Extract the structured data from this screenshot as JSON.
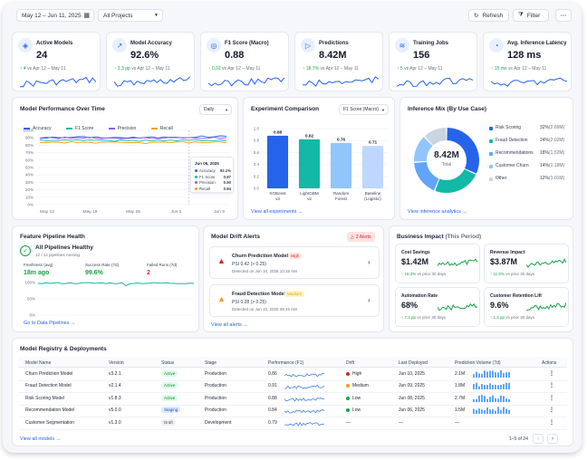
{
  "toolbar": {
    "date_range": "May 12 – Jun 11, 2025",
    "projects": "All Projects",
    "refresh": "Refresh",
    "filter": "Filter",
    "more": "···"
  },
  "kpis": [
    {
      "title": "Active Models",
      "value": "24",
      "delta": "↑ 4",
      "sub": "vs Apr 12 – May 11",
      "icon": "cube-icon"
    },
    {
      "title": "Model Accuracy",
      "value": "92.6%",
      "delta": "↑ 2.3 pp",
      "sub": "vs Apr 12 – May 11",
      "icon": "trend-icon"
    },
    {
      "title": "F1 Score (Macro)",
      "value": "0.88",
      "delta": "↑ 0.02",
      "sub": "vs Apr 12 – May 11",
      "icon": "target-icon"
    },
    {
      "title": "Predictions",
      "value": "8.42M",
      "delta": "↑ 18.7%",
      "sub": "vs Apr 12 – May 11",
      "icon": "play-icon"
    },
    {
      "title": "Training Jobs",
      "value": "156",
      "delta": "↑ 5",
      "sub": "vs Apr 12 – May 11",
      "icon": "layers-icon"
    },
    {
      "title": "Avg. Inference Latency",
      "value": "128 ms",
      "delta": "↑ 15 ms",
      "sub": "vs Apr 12 – May 11",
      "icon": "speed-icon"
    }
  ],
  "performance": {
    "title": "Model Performance Over Time",
    "period": "Daily",
    "legend": [
      "Accuracy",
      "F1 Score",
      "Precision",
      "Recall"
    ],
    "y_ticks": [
      "100%",
      "90%",
      "80%",
      "70%",
      "60%",
      "50%",
      "40%",
      "30%",
      "20%",
      "10%",
      "0%"
    ],
    "x_ticks": [
      "May 12",
      "May 19",
      "May 26",
      "Jun 2",
      "Jun 9"
    ],
    "tooltip": {
      "date": "Jun 05, 2025",
      "rows": [
        {
          "label": "Accuracy",
          "value": "92.1%"
        },
        {
          "label": "F1 Score",
          "value": "0.87"
        },
        {
          "label": "Precision",
          "value": "0.90"
        },
        {
          "label": "Recall",
          "value": "0.84"
        }
      ]
    }
  },
  "chart_data": {
    "type": "line",
    "title": "Model Performance Over Time",
    "x": [
      "May 12",
      "May 19",
      "May 26",
      "Jun 2",
      "Jun 9"
    ],
    "ylim": [
      0,
      100
    ],
    "series": [
      {
        "name": "Accuracy",
        "color": "#2563eb",
        "values": [
          90,
          91,
          90,
          91,
          92
        ]
      },
      {
        "name": "F1 Score",
        "color": "#14b8a6",
        "values": [
          87,
          87,
          86,
          87,
          87
        ]
      },
      {
        "name": "Precision",
        "color": "#8b5cf6",
        "values": [
          90,
          90,
          89,
          90,
          90
        ]
      },
      {
        "name": "Recall",
        "color": "#f59e0b",
        "values": [
          83,
          84,
          83,
          84,
          84
        ]
      }
    ],
    "grid": true,
    "legend": "top"
  },
  "experiment": {
    "title": "Experiment Comparison",
    "metric": "F1 Score (Macro)",
    "bars": [
      {
        "label": "XGBoost",
        "sub": "v3",
        "value": 0.88,
        "text": "0.88",
        "color": "#2563eb"
      },
      {
        "label": "LightGBM",
        "sub": "v2",
        "value": 0.82,
        "text": "0.82",
        "color": "#14b8a6"
      },
      {
        "label": "Random",
        "sub": "Forest",
        "value": 0.76,
        "text": "0.76",
        "color": "#93c5fd"
      },
      {
        "label": "Baseline",
        "sub": "(Logistic)",
        "value": 0.71,
        "text": "0.71",
        "color": "#bfd7ff"
      }
    ],
    "y_ticks": [
      "1.0",
      "0.8",
      "0.6",
      "0.4",
      "0.2",
      "0.0"
    ],
    "link": "View all experiments →"
  },
  "mix": {
    "title": "Inference Mix (By Use Case)",
    "center_value": "8.42M",
    "center_label": "Total",
    "rows": [
      {
        "label": "Risk Scoring",
        "pct": "32%",
        "val": "(2.69M)",
        "color": "#2563eb",
        "frac": 0.32
      },
      {
        "label": "Fraud Detection",
        "pct": "24%",
        "val": "(2.02M)",
        "color": "#14b8a6",
        "frac": 0.24
      },
      {
        "label": "Recommendations",
        "pct": "18%",
        "val": "(1.52M)",
        "color": "#60a5fa",
        "frac": 0.18
      },
      {
        "label": "Customer Churn",
        "pct": "14%",
        "val": "(1.18M)",
        "color": "#93c5fd",
        "frac": 0.14
      },
      {
        "label": "Other",
        "pct": "12%",
        "val": "(1.01M)",
        "color": "#cbd5e1",
        "frac": 0.12
      }
    ],
    "link": "View inference analytics →"
  },
  "pipeline": {
    "title": "Feature Pipeline Health",
    "status": "All Pipelines Healthy",
    "sub": "12 / 12 pipelines running",
    "freshness_label": "Freshness (avg)",
    "freshness": "18m ago",
    "success_label": "Success Rate (7d)",
    "success": "99.6%",
    "failed_label": "Failed Runs (7d)",
    "failed": "2",
    "y_ticks": [
      "100%",
      "50%",
      "0%"
    ],
    "link": "Go to Data Pipelines →"
  },
  "drift": {
    "title": "Model Drift Alerts",
    "badge": "2 Alerts",
    "alerts": [
      {
        "model": "Churn Prediction Model",
        "level": "High",
        "psi": "PSI 0.42 (> 0.25)",
        "detected": "Detected on Jun 10, 2025 10:15 AM"
      },
      {
        "model": "Fraud Detection Model",
        "level": "Medium",
        "psi": "PSI 0.28 (> 0.25)",
        "detected": "Detected on Jun 10, 2025 08:45 AM"
      }
    ],
    "link": "View all alerts →"
  },
  "impact": {
    "title": "Business Impact",
    "title_suffix": "(This Period)",
    "items": [
      {
        "title": "Cost Savings",
        "value": "$1.42M",
        "delta": "↑ 16.3%",
        "sub": "vs prior 30 days"
      },
      {
        "title": "Revenue Impact",
        "value": "$3.87M",
        "delta": "↑ 11.8%",
        "sub": "vs prior 30 days"
      },
      {
        "title": "Automation Rate",
        "value": "68%",
        "delta": "↑ 7.2 pp",
        "sub": "vs prior 30 days"
      },
      {
        "title": "Customer Retention Lift",
        "value": "9.6%",
        "delta": "↑ 1.4 pp",
        "sub": "vs prior 30 days"
      }
    ]
  },
  "registry": {
    "title": "Model Registry & Deployments",
    "columns": [
      "Model Name",
      "Version",
      "Status",
      "Stage",
      "Performance (F1)",
      "Drift",
      "Last Deployed",
      "Prediction Volume (7d)",
      "Actions"
    ],
    "rows": [
      {
        "name": "Churn Prediction Model",
        "version": "v3.2.1",
        "status": "Active",
        "stage": "Production",
        "perf": "0.86",
        "drift": "High",
        "drift_color": "#dc2626",
        "deployed": "Jun 10, 2025",
        "volume": "2.1M"
      },
      {
        "name": "Fraud Detection Model",
        "version": "v2.1.4",
        "status": "Active",
        "stage": "Production",
        "perf": "0.91",
        "drift": "Medium",
        "drift_color": "#f59e0b",
        "deployed": "Jun 09, 2025",
        "volume": "1.8M"
      },
      {
        "name": "Risk Scoring Model",
        "version": "v1.8.3",
        "status": "Active",
        "stage": "Production",
        "perf": "0.88",
        "drift": "Low",
        "drift_color": "#16a34a",
        "deployed": "Jun 08, 2025",
        "volume": "2.7M"
      },
      {
        "name": "Recommendation Model",
        "version": "v5.0.0",
        "status": "Staging",
        "stage": "Production",
        "perf": "0.84",
        "drift": "Low",
        "drift_color": "#16a34a",
        "deployed": "Jun 06, 2025",
        "volume": "1.5M"
      },
      {
        "name": "Customer Segmentation",
        "version": "v1.3.0",
        "status": "Draft",
        "stage": "Development",
        "perf": "0.79",
        "drift": "—",
        "drift_color": "",
        "deployed": "—",
        "volume": "—"
      }
    ],
    "link": "View all models →",
    "pagination": "1–5 of 24"
  }
}
